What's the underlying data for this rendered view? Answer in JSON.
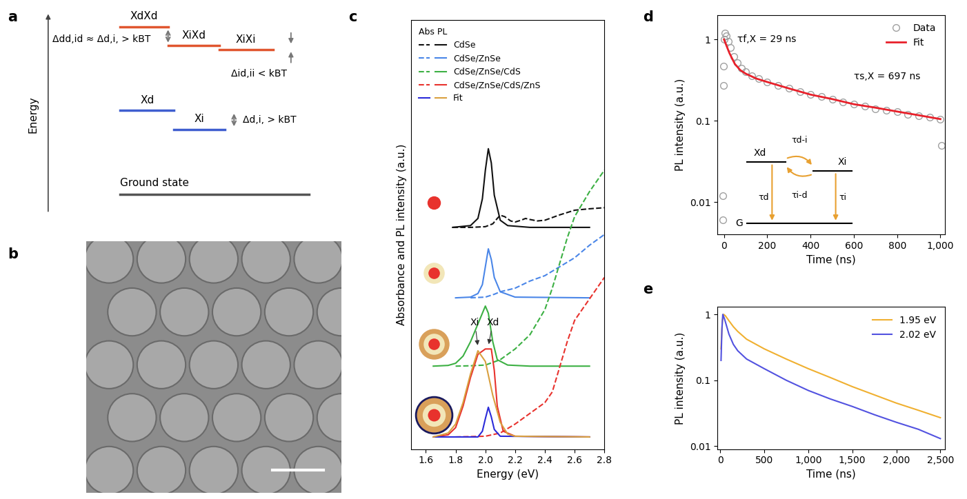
{
  "panel_labels": [
    "a",
    "b",
    "c",
    "d",
    "e"
  ],
  "diagram_a": {
    "axis_label": "Energy",
    "biexciton_levels": [
      "XdXd",
      "XiXd",
      "XiXi"
    ],
    "exciton_levels": [
      "Xd",
      "Xi"
    ],
    "ground": "Ground state",
    "gaps": [
      "Δdd,id ≈ Δd,i, > kBT",
      "Δid,ii < kBT",
      "Δd,i, > kBT"
    ]
  },
  "chart_data": [
    {
      "type": "line",
      "x_label": "Energy (eV)",
      "y_label": "Absorbance and PL intensity (a.u.)",
      "xlim": [
        1.5,
        2.8
      ],
      "xticks": [
        1.6,
        1.8,
        2.0,
        2.2,
        2.4,
        2.6,
        2.8
      ],
      "ylim": [
        0,
        12
      ],
      "tick_labels": "x",
      "legend": "upper left",
      "legend_title": "Abs PL",
      "series": [
        {
          "name": "CdSe",
          "color": "#111111",
          "abs": {
            "line_style": "dashed",
            "x": [
              1.78,
              1.9,
              2.0,
              2.05,
              2.08,
              2.1,
              2.13,
              2.17,
              2.2,
              2.24,
              2.27,
              2.3,
              2.35,
              2.4,
              2.5,
              2.6,
              2.7,
              2.8
            ],
            "values": [
              6.2,
              6.2,
              6.22,
              6.3,
              6.45,
              6.54,
              6.5,
              6.38,
              6.35,
              6.4,
              6.45,
              6.42,
              6.38,
              6.4,
              6.55,
              6.68,
              6.72,
              6.75
            ]
          },
          "pl": {
            "line_style": "solid",
            "x": [
              1.78,
              1.9,
              1.95,
              1.98,
              2.0,
              2.02,
              2.04,
              2.06,
              2.1,
              2.15,
              2.3,
              2.7
            ],
            "values": [
              6.2,
              6.25,
              6.45,
              7.0,
              7.8,
              8.4,
              8.0,
              7.1,
              6.4,
              6.25,
              6.2,
              6.2
            ]
          }
        },
        {
          "name": "CdSe/ZnSe",
          "color": "#4a86e8",
          "abs": {
            "line_style": "dashed",
            "x": [
              1.9,
              2.0,
              2.06,
              2.1,
              2.15,
              2.2,
              2.3,
              2.4,
              2.5,
              2.6,
              2.7,
              2.8
            ],
            "values": [
              4.23,
              4.25,
              4.33,
              4.4,
              4.45,
              4.5,
              4.7,
              4.85,
              5.1,
              5.35,
              5.7,
              6.0
            ]
          },
          "pl": {
            "line_style": "solid",
            "x": [
              1.8,
              1.9,
              1.95,
              1.98,
              2.0,
              2.02,
              2.04,
              2.06,
              2.1,
              2.2,
              2.7
            ],
            "values": [
              4.23,
              4.25,
              4.35,
              4.6,
              5.1,
              5.6,
              5.3,
              4.8,
              4.4,
              4.25,
              4.23
            ]
          }
        },
        {
          "name": "CdSe/ZnSe/CdS",
          "color": "#3cb043",
          "abs": {
            "line_style": "dashed",
            "x": [
              1.8,
              1.9,
              2.0,
              2.1,
              2.2,
              2.3,
              2.4,
              2.45,
              2.5,
              2.55,
              2.6,
              2.7,
              2.8
            ],
            "values": [
              2.32,
              2.33,
              2.35,
              2.5,
              2.8,
              3.2,
              3.9,
              4.5,
              5.2,
              5.9,
              6.5,
              7.2,
              7.8
            ]
          },
          "pl": {
            "line_style": "solid",
            "x": [
              1.65,
              1.75,
              1.8,
              1.85,
              1.9,
              1.95,
              2.0,
              2.02,
              2.05,
              2.08,
              2.15,
              2.3,
              2.7
            ],
            "values": [
              2.32,
              2.34,
              2.4,
              2.6,
              3.0,
              3.5,
              4.0,
              3.8,
              3.0,
              2.5,
              2.35,
              2.32,
              2.32
            ]
          }
        },
        {
          "name": "CdSe/ZnSe/CdS/ZnS",
          "color": "#e8322d",
          "abs": {
            "line_style": "dashed",
            "x": [
              1.8,
              2.0,
              2.1,
              2.2,
              2.3,
              2.4,
              2.45,
              2.5,
              2.55,
              2.6,
              2.7,
              2.8
            ],
            "values": [
              0.34,
              0.36,
              0.45,
              0.7,
              1.0,
              1.3,
              1.6,
              2.3,
              3.0,
              3.6,
              4.2,
              4.8
            ]
          },
          "pl": {
            "line_style": "solid",
            "x": [
              1.65,
              1.75,
              1.8,
              1.85,
              1.9,
              1.95,
              2.0,
              2.04,
              2.06,
              2.08,
              2.12,
              2.2,
              2.7
            ],
            "values": [
              0.34,
              0.4,
              0.6,
              1.2,
              2.0,
              2.65,
              2.8,
              2.8,
              2.2,
              1.2,
              0.5,
              0.36,
              0.34
            ]
          }
        }
      ],
      "fit": {
        "name": "Fit",
        "curves": [
          {
            "color": "#2b2bd9",
            "x": [
              1.65,
              1.95,
              1.98,
              2.0,
              2.02,
              2.04,
              2.06,
              2.1,
              2.7
            ],
            "values": [
              0.34,
              0.34,
              0.5,
              0.85,
              1.17,
              0.9,
              0.55,
              0.36,
              0.34
            ]
          },
          {
            "color": "#d9a03f",
            "x": [
              1.65,
              1.75,
              1.8,
              1.85,
              1.9,
              1.95,
              2.0,
              2.05,
              2.1,
              2.15,
              2.2,
              2.7
            ],
            "values": [
              0.34,
              0.45,
              0.7,
              1.3,
              2.1,
              2.75,
              2.45,
              1.5,
              0.75,
              0.42,
              0.36,
              0.34
            ]
          }
        ]
      },
      "annotations": [
        {
          "text": "Xi",
          "x": 1.93,
          "y": 3.4,
          "target_x": 1.95,
          "target_y": 2.85
        },
        {
          "text": "Xd",
          "x": 2.05,
          "y": 3.4,
          "target_x": 2.02,
          "target_y": 2.88
        }
      ]
    },
    {
      "type": "scatter",
      "x_label": "Time (ns)",
      "y_label": "PL intensity (a.u.)",
      "log": "y",
      "xlim": [
        -30,
        1020
      ],
      "xticks": [
        0,
        200,
        400,
        600,
        800,
        {
          "value": 1000,
          "label": "1,000"
        }
      ],
      "ylim": [
        0.004,
        2
      ],
      "yticks": [
        0.01,
        0.1,
        1
      ],
      "legend": "upper right",
      "series": [
        {
          "name": "Data",
          "type": "scatter",
          "marker": "o",
          "color": "#a0a0a0",
          "x": [
            -5,
            -5,
            -3,
            -2,
            0,
            5,
            10,
            20,
            30,
            45,
            60,
            80,
            100,
            130,
            160,
            200,
            250,
            300,
            350,
            400,
            450,
            500,
            550,
            600,
            650,
            700,
            750,
            800,
            850,
            900,
            950,
            1000,
            1005
          ],
          "values": [
            0.006,
            0.012,
            0.27,
            0.47,
            1.0,
            1.2,
            1.1,
            0.95,
            0.8,
            0.62,
            0.52,
            0.44,
            0.4,
            0.36,
            0.33,
            0.3,
            0.27,
            0.25,
            0.23,
            0.21,
            0.2,
            0.185,
            0.17,
            0.16,
            0.15,
            0.14,
            0.135,
            0.13,
            0.12,
            0.115,
            0.11,
            0.105,
            0.05
          ]
        },
        {
          "name": "Fit",
          "type": "line",
          "color": "#e8202a",
          "x": [
            0,
            25,
            50,
            75,
            100,
            150,
            200,
            300,
            400,
            500,
            600,
            700,
            800,
            900,
            1000
          ],
          "values": [
            1.0,
            0.68,
            0.5,
            0.42,
            0.38,
            0.33,
            0.3,
            0.25,
            0.21,
            0.185,
            0.16,
            0.145,
            0.13,
            0.117,
            0.105
          ]
        }
      ],
      "annotations": [
        {
          "text": "τf,X = 29 ns",
          "x": 60,
          "y": 1.0
        },
        {
          "text": "τs,X = 697 ns",
          "x": 600,
          "y": 0.35
        }
      ],
      "inset": {
        "levels": [
          "Xd",
          "Xi",
          "G"
        ],
        "rates": [
          "τd-i",
          "τi-d",
          "τd",
          "τi"
        ]
      }
    },
    {
      "type": "line",
      "x_label": "Time (ns)",
      "y_label": "PL intensity (a.u.)",
      "log": "y",
      "xlim": [
        -30,
        2550
      ],
      "xticks": [
        0,
        500,
        {
          "value": 1000,
          "label": "1,000"
        },
        {
          "value": 1500,
          "label": "1,500"
        },
        {
          "value": 2000,
          "label": "2,000"
        },
        {
          "value": 2500,
          "label": "2,500"
        }
      ],
      "ylim": [
        0.009,
        1.3
      ],
      "yticks": [
        0.01,
        0.1,
        1
      ],
      "legend": "upper right",
      "series": [
        {
          "name": "1.95 eV",
          "color": "#f0b030",
          "x": [
            10,
            25,
            40,
            60,
            100,
            150,
            200,
            300,
            500,
            750,
            1000,
            1250,
            1500,
            1750,
            2000,
            2250,
            2500
          ],
          "values": [
            0.3,
            0.8,
            1.0,
            0.95,
            0.8,
            0.65,
            0.55,
            0.42,
            0.3,
            0.21,
            0.15,
            0.11,
            0.08,
            0.06,
            0.045,
            0.035,
            0.027
          ]
        },
        {
          "name": "2.02 eV",
          "color": "#5252e0",
          "x": [
            10,
            20,
            30,
            50,
            100,
            150,
            200,
            300,
            500,
            750,
            1000,
            1250,
            1500,
            1750,
            2000,
            2250,
            2500
          ],
          "values": [
            0.2,
            0.6,
            1.0,
            0.85,
            0.5,
            0.35,
            0.28,
            0.21,
            0.15,
            0.1,
            0.07,
            0.052,
            0.04,
            0.03,
            0.023,
            0.018,
            0.013
          ]
        }
      ]
    }
  ]
}
